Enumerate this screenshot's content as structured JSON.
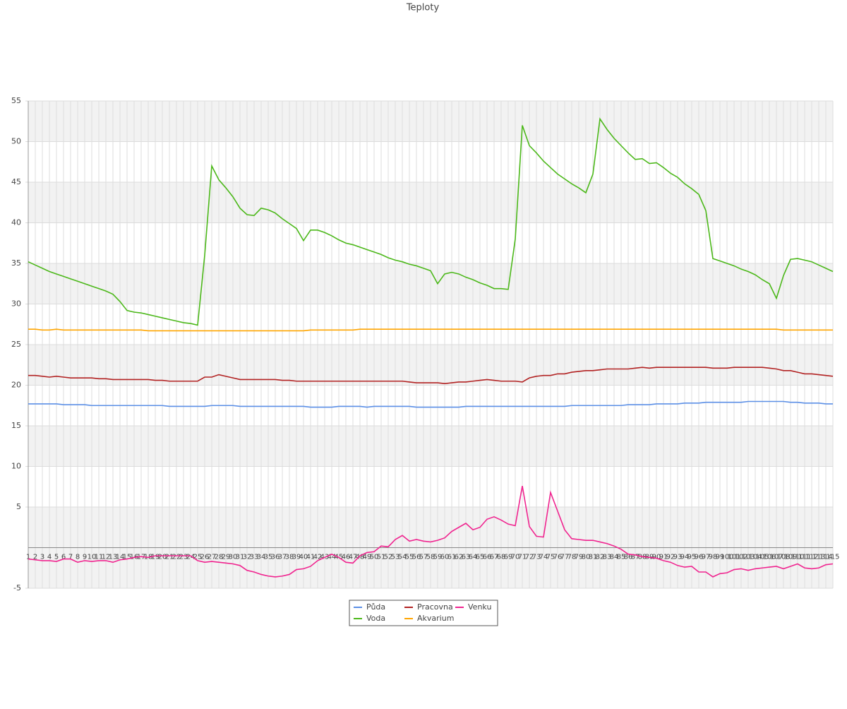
{
  "chart_data": {
    "type": "line",
    "title": "Teploty",
    "categories": [
      "1",
      "2",
      "3",
      "4",
      "5",
      "6",
      "7",
      "8",
      "9",
      "10",
      "11",
      "12",
      "13",
      "14",
      "15",
      "16",
      "17",
      "18",
      "19",
      "20",
      "21",
      "22",
      "23",
      "24",
      "25",
      "26",
      "27",
      "28",
      "29",
      "30",
      "31",
      "32",
      "33",
      "34",
      "35",
      "36",
      "37",
      "38",
      "39",
      "40",
      "41",
      "42",
      "43",
      "44",
      "45",
      "46",
      "47",
      "48",
      "49",
      "50",
      "51",
      "52",
      "53",
      "54",
      "55",
      "56",
      "57",
      "58",
      "59",
      "60",
      "61",
      "62",
      "63",
      "64",
      "65",
      "66",
      "67",
      "68",
      "69",
      "70",
      "71",
      "72",
      "73",
      "74",
      "75",
      "76",
      "77",
      "78",
      "79",
      "80",
      "81",
      "82",
      "83",
      "84",
      "85",
      "86",
      "87",
      "88",
      "89",
      "90",
      "91",
      "92",
      "93",
      "94",
      "95",
      "96",
      "97",
      "98",
      "99",
      "100",
      "101",
      "102",
      "103",
      "104",
      "105",
      "106",
      "107",
      "108",
      "109",
      "110",
      "111",
      "112",
      "113",
      "114",
      "115"
    ],
    "series": [
      {
        "name": "Půda",
        "color": "#5b8fe6",
        "values": [
          17.7,
          17.7,
          17.7,
          17.7,
          17.7,
          17.6,
          17.6,
          17.6,
          17.6,
          17.5,
          17.5,
          17.5,
          17.5,
          17.5,
          17.5,
          17.5,
          17.5,
          17.5,
          17.5,
          17.5,
          17.4,
          17.4,
          17.4,
          17.4,
          17.4,
          17.4,
          17.5,
          17.5,
          17.5,
          17.5,
          17.4,
          17.4,
          17.4,
          17.4,
          17.4,
          17.4,
          17.4,
          17.4,
          17.4,
          17.4,
          17.3,
          17.3,
          17.3,
          17.3,
          17.4,
          17.4,
          17.4,
          17.4,
          17.3,
          17.4,
          17.4,
          17.4,
          17.4,
          17.4,
          17.4,
          17.3,
          17.3,
          17.3,
          17.3,
          17.3,
          17.3,
          17.3,
          17.4,
          17.4,
          17.4,
          17.4,
          17.4,
          17.4,
          17.4,
          17.4,
          17.4,
          17.4,
          17.4,
          17.4,
          17.4,
          17.4,
          17.4,
          17.5,
          17.5,
          17.5,
          17.5,
          17.5,
          17.5,
          17.5,
          17.5,
          17.6,
          17.6,
          17.6,
          17.6,
          17.7,
          17.7,
          17.7,
          17.7,
          17.8,
          17.8,
          17.8,
          17.9,
          17.9,
          17.9,
          17.9,
          17.9,
          17.9,
          18.0,
          18.0,
          18.0,
          18.0,
          18.0,
          18.0,
          17.9,
          17.9,
          17.8,
          17.8,
          17.8,
          17.7,
          17.7
        ]
      },
      {
        "name": "Voda",
        "color": "#4cb81a",
        "values": [
          35.2,
          34.8,
          34.4,
          34.0,
          33.7,
          33.4,
          33.1,
          32.8,
          32.5,
          32.2,
          31.9,
          31.6,
          31.2,
          30.3,
          29.2,
          29.0,
          28.9,
          28.7,
          28.5,
          28.3,
          28.1,
          27.9,
          27.7,
          27.6,
          27.4,
          36.0,
          47.0,
          45.3,
          44.3,
          43.2,
          41.8,
          41.0,
          40.9,
          41.8,
          41.6,
          41.2,
          40.5,
          39.9,
          39.3,
          37.8,
          39.1,
          39.1,
          38.8,
          38.4,
          37.9,
          37.5,
          37.3,
          37.0,
          36.7,
          36.4,
          36.1,
          35.7,
          35.4,
          35.2,
          34.9,
          34.7,
          34.4,
          34.1,
          32.5,
          33.7,
          33.9,
          33.7,
          33.3,
          33.0,
          32.6,
          32.3,
          31.9,
          31.9,
          31.8,
          38.0,
          52.0,
          49.5,
          48.6,
          47.6,
          46.8,
          46.0,
          45.4,
          44.8,
          44.3,
          43.7,
          46.0,
          52.8,
          51.5,
          50.4,
          49.5,
          48.6,
          47.8,
          47.9,
          47.3,
          47.4,
          46.8,
          46.1,
          45.6,
          44.8,
          44.2,
          43.5,
          41.5,
          35.6,
          35.3,
          35.0,
          34.7,
          34.3,
          34.0,
          33.6,
          33.0,
          32.5,
          30.7,
          33.5,
          35.5,
          35.6,
          35.4,
          35.2,
          34.8,
          34.4,
          34.0
        ]
      },
      {
        "name": "Pracovna",
        "color": "#b22222",
        "values": [
          21.2,
          21.2,
          21.1,
          21.0,
          21.1,
          21.0,
          20.9,
          20.9,
          20.9,
          20.9,
          20.8,
          20.8,
          20.7,
          20.7,
          20.7,
          20.7,
          20.7,
          20.7,
          20.6,
          20.6,
          20.5,
          20.5,
          20.5,
          20.5,
          20.5,
          21.0,
          21.0,
          21.3,
          21.1,
          20.9,
          20.7,
          20.7,
          20.7,
          20.7,
          20.7,
          20.7,
          20.6,
          20.6,
          20.5,
          20.5,
          20.5,
          20.5,
          20.5,
          20.5,
          20.5,
          20.5,
          20.5,
          20.5,
          20.5,
          20.5,
          20.5,
          20.5,
          20.5,
          20.5,
          20.4,
          20.3,
          20.3,
          20.3,
          20.3,
          20.2,
          20.3,
          20.4,
          20.4,
          20.5,
          20.6,
          20.7,
          20.6,
          20.5,
          20.5,
          20.5,
          20.4,
          20.9,
          21.1,
          21.2,
          21.2,
          21.4,
          21.4,
          21.6,
          21.7,
          21.8,
          21.8,
          21.9,
          22.0,
          22.0,
          22.0,
          22.0,
          22.1,
          22.2,
          22.1,
          22.2,
          22.2,
          22.2,
          22.2,
          22.2,
          22.2,
          22.2,
          22.2,
          22.1,
          22.1,
          22.1,
          22.2,
          22.2,
          22.2,
          22.2,
          22.2,
          22.1,
          22.0,
          21.8,
          21.8,
          21.6,
          21.4,
          21.4,
          21.3,
          21.2,
          21.1
        ]
      },
      {
        "name": "Akvarium",
        "color": "#ffa500",
        "values": [
          26.9,
          26.9,
          26.8,
          26.8,
          26.9,
          26.8,
          26.8,
          26.8,
          26.8,
          26.8,
          26.8,
          26.8,
          26.8,
          26.8,
          26.8,
          26.8,
          26.8,
          26.7,
          26.7,
          26.7,
          26.7,
          26.7,
          26.7,
          26.7,
          26.7,
          26.7,
          26.7,
          26.7,
          26.7,
          26.7,
          26.7,
          26.7,
          26.7,
          26.7,
          26.7,
          26.7,
          26.7,
          26.7,
          26.7,
          26.7,
          26.8,
          26.8,
          26.8,
          26.8,
          26.8,
          26.8,
          26.8,
          26.9,
          26.9,
          26.9,
          26.9,
          26.9,
          26.9,
          26.9,
          26.9,
          26.9,
          26.9,
          26.9,
          26.9,
          26.9,
          26.9,
          26.9,
          26.9,
          26.9,
          26.9,
          26.9,
          26.9,
          26.9,
          26.9,
          26.9,
          26.9,
          26.9,
          26.9,
          26.9,
          26.9,
          26.9,
          26.9,
          26.9,
          26.9,
          26.9,
          26.9,
          26.9,
          26.9,
          26.9,
          26.9,
          26.9,
          26.9,
          26.9,
          26.9,
          26.9,
          26.9,
          26.9,
          26.9,
          26.9,
          26.9,
          26.9,
          26.9,
          26.9,
          26.9,
          26.9,
          26.9,
          26.9,
          26.9,
          26.9,
          26.9,
          26.9,
          26.9,
          26.8,
          26.8,
          26.8,
          26.8,
          26.8,
          26.8,
          26.8,
          26.8
        ]
      },
      {
        "name": "Venku",
        "color": "#f0248f",
        "values": [
          -1.4,
          -1.5,
          -1.6,
          -1.6,
          -1.7,
          -1.4,
          -1.4,
          -1.8,
          -1.6,
          -1.7,
          -1.6,
          -1.6,
          -1.8,
          -1.5,
          -1.4,
          -1.2,
          -1.1,
          -1.2,
          -1.0,
          -1.0,
          -1.0,
          -1.0,
          -1.0,
          -1.0,
          -1.6,
          -1.8,
          -1.7,
          -1.8,
          -1.9,
          -2.0,
          -2.2,
          -2.8,
          -3.0,
          -3.3,
          -3.5,
          -3.6,
          -3.5,
          -3.3,
          -2.7,
          -2.6,
          -2.3,
          -1.6,
          -1.2,
          -0.8,
          -1.2,
          -1.8,
          -1.9,
          -1.0,
          -0.6,
          -0.5,
          0.2,
          0.1,
          1.0,
          1.5,
          0.8,
          1.0,
          0.8,
          0.7,
          0.9,
          1.2,
          2.0,
          2.5,
          3.0,
          2.2,
          2.5,
          3.5,
          3.8,
          3.4,
          2.9,
          2.7,
          7.6,
          2.6,
          1.4,
          1.3,
          6.8,
          4.5,
          2.2,
          1.1,
          1.0,
          0.9,
          0.9,
          0.7,
          0.5,
          0.2,
          -0.2,
          -0.8,
          -0.9,
          -1.1,
          -1.2,
          -1.3,
          -1.6,
          -1.8,
          -2.2,
          -2.4,
          -2.3,
          -3.0,
          -3.0,
          -3.6,
          -3.2,
          -3.1,
          -2.7,
          -2.6,
          -2.8,
          -2.6,
          -2.5,
          -2.4,
          -2.3,
          -2.6,
          -2.3,
          -2.0,
          -2.5,
          -2.6,
          -2.5,
          -2.1,
          -2.0
        ]
      }
    ],
    "ylim": [
      -5,
      55
    ],
    "yticks": [
      55,
      50,
      45,
      40,
      35,
      30,
      25,
      20,
      15,
      10,
      5,
      -5
    ],
    "grid": true,
    "legend": "bottom"
  }
}
